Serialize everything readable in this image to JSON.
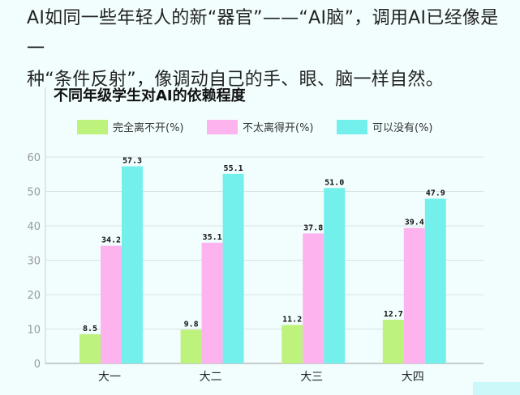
{
  "paragraph": {
    "line1": "AI如同一些年轻人的新“器官”——“AI脑”，调用AI已经像是一",
    "line2": "种“条件反射”，像调动自己的手、眼、脑一样自然。"
  },
  "chart_data": {
    "type": "bar",
    "title": "不同年级学生对AI的依赖程度",
    "categories": [
      "大一",
      "大二",
      "大三",
      "大四"
    ],
    "series": [
      {
        "name": "完全离不开(%)",
        "values": [
          8.5,
          9.8,
          11.2,
          12.7
        ],
        "color": "#bdf27d"
      },
      {
        "name": "不太离得开(%)",
        "values": [
          34.2,
          35.1,
          37.8,
          39.4
        ],
        "color": "#fdb4ee"
      },
      {
        "name": "可以没有(%)",
        "values": [
          57.3,
          55.1,
          51.0,
          47.9
        ],
        "color": "#74f0ec"
      }
    ],
    "value_labels": [
      [
        "8.5",
        "9.8",
        "11.2",
        "12.7"
      ],
      [
        "34.2",
        "35.1",
        "37.8",
        "39.4"
      ],
      [
        "57.3",
        "55.1",
        "51.0",
        "47.9"
      ]
    ],
    "yticks": [
      "0",
      "10",
      "20",
      "30",
      "40",
      "50",
      "60"
    ],
    "ylim": [
      0,
      60
    ],
    "grid": true,
    "legend": "top"
  }
}
